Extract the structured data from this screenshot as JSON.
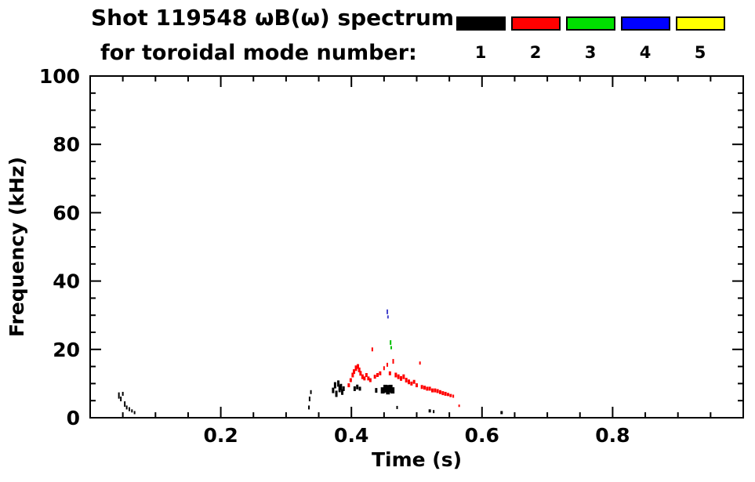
{
  "header": {
    "title": "Shot 119548 ωB(ω) spectrum",
    "subtitle": "for toroidal mode number:"
  },
  "legend": {
    "items": [
      {
        "label": "1",
        "color": "#000000"
      },
      {
        "label": "2",
        "color": "#ff0000"
      },
      {
        "label": "3",
        "color": "#00e000"
      },
      {
        "label": "4",
        "color": "#0000ff"
      },
      {
        "label": "5",
        "color": "#ffff00"
      }
    ]
  },
  "chart_data": {
    "type": "scatter",
    "title": "Shot 119548 ωB(ω) spectrum for toroidal mode number 1-5",
    "xlabel": "Time (s)",
    "ylabel": "Frequency (kHz)",
    "xlim": [
      0,
      1.0
    ],
    "ylim": [
      0,
      100
    ],
    "xticks": [
      0.2,
      0.4,
      0.6,
      0.8
    ],
    "xtick_labels": [
      "0.2",
      "0.4",
      "0.6",
      "0.8"
    ],
    "x_minor_step": 0.05,
    "yticks": [
      0,
      20,
      40,
      60,
      80,
      100
    ],
    "ytick_labels": [
      "0",
      "20",
      "40",
      "60",
      "80",
      "100"
    ],
    "y_minor_step": 5,
    "grid": false,
    "legend_position": "top-right",
    "series": [
      {
        "name": "n=1",
        "color": "#000000",
        "points": [
          [
            0.044,
            6.5,
            2,
            8
          ],
          [
            0.047,
            5.5,
            2,
            6
          ],
          [
            0.05,
            7.0,
            2,
            5
          ],
          [
            0.053,
            4.0,
            2,
            7
          ],
          [
            0.056,
            3.0,
            2,
            5
          ],
          [
            0.06,
            2.5,
            2,
            5
          ],
          [
            0.064,
            2.0,
            2,
            4
          ],
          [
            0.068,
            1.5,
            2,
            4
          ],
          [
            0.335,
            3.0,
            2,
            5
          ],
          [
            0.336,
            5.5,
            2,
            6
          ],
          [
            0.338,
            7.5,
            2,
            5
          ],
          [
            0.372,
            8.0,
            3,
            7
          ],
          [
            0.375,
            9.5,
            3,
            8
          ],
          [
            0.377,
            7.0,
            3,
            8
          ],
          [
            0.38,
            10.0,
            3,
            8
          ],
          [
            0.382,
            8.5,
            3,
            9
          ],
          [
            0.384,
            9.0,
            3,
            8
          ],
          [
            0.386,
            7.5,
            3,
            7
          ],
          [
            0.388,
            8.5,
            3,
            6
          ],
          [
            0.405,
            8.5,
            3,
            6
          ],
          [
            0.409,
            9.0,
            3,
            6
          ],
          [
            0.413,
            8.5,
            3,
            5
          ],
          [
            0.438,
            8.0,
            3,
            6
          ],
          [
            0.448,
            8.0,
            5,
            8
          ],
          [
            0.452,
            8.5,
            5,
            10
          ],
          [
            0.456,
            8.2,
            5,
            12
          ],
          [
            0.46,
            8.5,
            5,
            10
          ],
          [
            0.463,
            8.0,
            5,
            8
          ],
          [
            0.47,
            3.0,
            2,
            4
          ],
          [
            0.52,
            2.0,
            3,
            4
          ],
          [
            0.526,
            1.8,
            2,
            4
          ],
          [
            0.63,
            1.5,
            3,
            4
          ]
        ]
      },
      {
        "name": "n=2",
        "color": "#ff0000",
        "points": [
          [
            0.396,
            9.5,
            3,
            5
          ],
          [
            0.399,
            11.0,
            3,
            5
          ],
          [
            0.402,
            12.5,
            3,
            6
          ],
          [
            0.404,
            13.5,
            3,
            6
          ],
          [
            0.407,
            14.5,
            3,
            7
          ],
          [
            0.41,
            15.0,
            3,
            6
          ],
          [
            0.412,
            14.0,
            3,
            6
          ],
          [
            0.414,
            13.0,
            3,
            6
          ],
          [
            0.417,
            12.0,
            3,
            6
          ],
          [
            0.42,
            11.5,
            3,
            5
          ],
          [
            0.423,
            12.5,
            3,
            5
          ],
          [
            0.426,
            11.5,
            3,
            5
          ],
          [
            0.429,
            11.0,
            3,
            5
          ],
          [
            0.432,
            20.0,
            2,
            5
          ],
          [
            0.436,
            12.0,
            3,
            5
          ],
          [
            0.44,
            12.5,
            3,
            5
          ],
          [
            0.444,
            13.0,
            3,
            5
          ],
          [
            0.45,
            14.5,
            2,
            5
          ],
          [
            0.455,
            15.5,
            2,
            5
          ],
          [
            0.459,
            13.0,
            3,
            5
          ],
          [
            0.464,
            16.5,
            2,
            6
          ],
          [
            0.468,
            12.5,
            3,
            6
          ],
          [
            0.472,
            12.0,
            3,
            6
          ],
          [
            0.476,
            11.5,
            3,
            6
          ],
          [
            0.48,
            12.0,
            3,
            6
          ],
          [
            0.484,
            11.0,
            3,
            6
          ],
          [
            0.488,
            10.5,
            3,
            6
          ],
          [
            0.492,
            10.0,
            3,
            5
          ],
          [
            0.496,
            10.5,
            3,
            5
          ],
          [
            0.5,
            9.5,
            3,
            5
          ],
          [
            0.505,
            16.0,
            2,
            4
          ],
          [
            0.508,
            9.0,
            3,
            5
          ],
          [
            0.512,
            8.8,
            3,
            5
          ],
          [
            0.516,
            8.5,
            3,
            5
          ],
          [
            0.52,
            8.5,
            3,
            5
          ],
          [
            0.524,
            8.0,
            3,
            5
          ],
          [
            0.528,
            8.0,
            3,
            5
          ],
          [
            0.532,
            7.8,
            3,
            5
          ],
          [
            0.536,
            7.5,
            3,
            5
          ],
          [
            0.54,
            7.2,
            3,
            5
          ],
          [
            0.544,
            7.0,
            3,
            5
          ],
          [
            0.548,
            6.8,
            3,
            4
          ],
          [
            0.552,
            6.5,
            3,
            4
          ],
          [
            0.556,
            6.3,
            2,
            4
          ],
          [
            0.565,
            3.5,
            2,
            3
          ]
        ]
      },
      {
        "name": "n=3",
        "color": "#00c000",
        "points": [
          [
            0.46,
            22.0,
            2,
            6
          ],
          [
            0.461,
            20.5,
            2,
            4
          ]
        ]
      },
      {
        "name": "n=4",
        "color": "#4444cc",
        "points": [
          [
            0.455,
            31.0,
            2,
            6
          ],
          [
            0.456,
            29.5,
            2,
            4
          ]
        ]
      },
      {
        "name": "n=5",
        "color": "#ffff00",
        "points": []
      }
    ]
  }
}
